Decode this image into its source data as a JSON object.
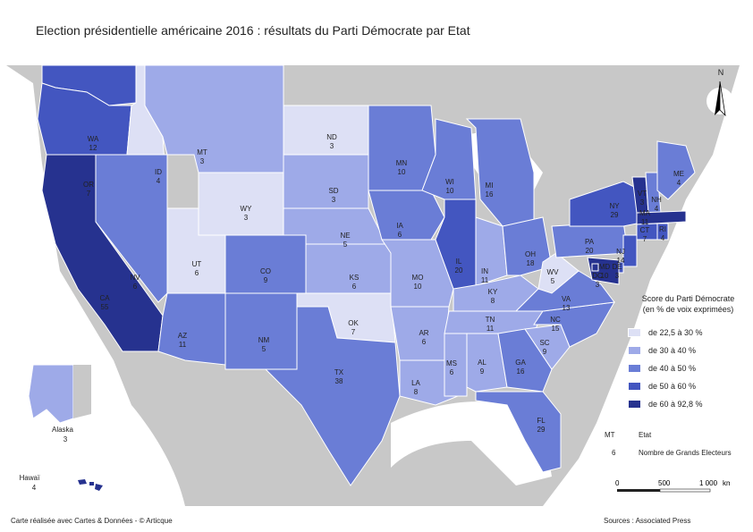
{
  "title": "Election présidentielle américaine 2016 : résultats du Parti Démocrate par Etat",
  "colors": {
    "c1": "#dde0f5",
    "c2": "#9eaae8",
    "c3": "#6a7dd6",
    "c4": "#4356c0",
    "c5": "#26328f",
    "land": "#c8c8c8"
  },
  "states": [
    {
      "code": "WA",
      "ev": "12",
      "class": "c4"
    },
    {
      "code": "OR",
      "ev": "7",
      "class": "c4"
    },
    {
      "code": "CA",
      "ev": "55",
      "class": "c5"
    },
    {
      "code": "ID",
      "ev": "4",
      "class": "c1"
    },
    {
      "code": "NV",
      "ev": "6",
      "class": "c3"
    },
    {
      "code": "MT",
      "ev": "3",
      "class": "c2"
    },
    {
      "code": "WY",
      "ev": "3",
      "class": "c1"
    },
    {
      "code": "UT",
      "ev": "6",
      "class": "c1"
    },
    {
      "code": "AZ",
      "ev": "11",
      "class": "c3"
    },
    {
      "code": "CO",
      "ev": "9",
      "class": "c3"
    },
    {
      "code": "NM",
      "ev": "5",
      "class": "c3"
    },
    {
      "code": "ND",
      "ev": "3",
      "class": "c1"
    },
    {
      "code": "SD",
      "ev": "3",
      "class": "c2"
    },
    {
      "code": "NE",
      "ev": "5",
      "class": "c2"
    },
    {
      "code": "KS",
      "ev": "6",
      "class": "c2"
    },
    {
      "code": "OK",
      "ev": "7",
      "class": "c1"
    },
    {
      "code": "TX",
      "ev": "38",
      "class": "c3"
    },
    {
      "code": "MN",
      "ev": "10",
      "class": "c3"
    },
    {
      "code": "IA",
      "ev": "6",
      "class": "c3"
    },
    {
      "code": "MO",
      "ev": "10",
      "class": "c2"
    },
    {
      "code": "AR",
      "ev": "6",
      "class": "c2"
    },
    {
      "code": "LA",
      "ev": "8",
      "class": "c2"
    },
    {
      "code": "WI",
      "ev": "10",
      "class": "c3"
    },
    {
      "code": "IL",
      "ev": "20",
      "class": "c4"
    },
    {
      "code": "MI",
      "ev": "16",
      "class": "c3"
    },
    {
      "code": "IN",
      "ev": "11",
      "class": "c2"
    },
    {
      "code": "OH",
      "ev": "18",
      "class": "c3"
    },
    {
      "code": "KY",
      "ev": "8",
      "class": "c2"
    },
    {
      "code": "TN",
      "ev": "11",
      "class": "c2"
    },
    {
      "code": "MS",
      "ev": "6",
      "class": "c2"
    },
    {
      "code": "AL",
      "ev": "9",
      "class": "c2"
    },
    {
      "code": "GA",
      "ev": "16",
      "class": "c3"
    },
    {
      "code": "FL",
      "ev": "29",
      "class": "c3"
    },
    {
      "code": "SC",
      "ev": "9",
      "class": "c2"
    },
    {
      "code": "NC",
      "ev": "15",
      "class": "c3"
    },
    {
      "code": "VA",
      "ev": "13",
      "class": "c3"
    },
    {
      "code": "WV",
      "ev": "5",
      "class": "c1"
    },
    {
      "code": "PA",
      "ev": "20",
      "class": "c3"
    },
    {
      "code": "NY",
      "ev": "29",
      "class": "c4"
    },
    {
      "code": "VT",
      "ev": "3",
      "class": "c5"
    },
    {
      "code": "NH",
      "ev": "4",
      "class": "c3"
    },
    {
      "code": "ME",
      "ev": "4",
      "class": "c3"
    },
    {
      "code": "MA",
      "ev": "11",
      "class": "c5"
    },
    {
      "code": "CT",
      "ev": "7",
      "class": "c4"
    },
    {
      "code": "RI",
      "ev": "4",
      "class": "c4"
    },
    {
      "code": "NJ",
      "ev": "14",
      "class": "c4"
    },
    {
      "code": "DE",
      "ev": "3",
      "class": "c4"
    },
    {
      "code": "MD",
      "ev": "10",
      "class": "c5"
    },
    {
      "code": "DC",
      "ev": "3",
      "class": "c5"
    }
  ],
  "insets": {
    "alaska": {
      "name": "Alaska",
      "ev": "3"
    },
    "hawaii": {
      "name": "Hawaï",
      "ev": "4"
    }
  },
  "north_label": "N",
  "legend": {
    "title_line1": "Score du Parti Démocrate",
    "title_line2": "(en % de voix exprimées)",
    "items": [
      {
        "label": "de 22,5 à 30 %",
        "color": "#dde0f5"
      },
      {
        "label": "de 30 à 40 %",
        "color": "#9eaae8"
      },
      {
        "label": "de 40 à 50 %",
        "color": "#6a7dd6"
      },
      {
        "label": "de 50 à 60 %",
        "color": "#4356c0"
      },
      {
        "label": "de 60 à 92,8 %",
        "color": "#26328f"
      }
    ]
  },
  "key": {
    "code_example": "MT",
    "code_meaning": "Etat",
    "ev_example": "6",
    "ev_meaning": "Nombre de Grands Electeurs"
  },
  "scale": {
    "t0": "0",
    "t1": "500",
    "t2": "1 000",
    "unit": "km"
  },
  "footer_left": "Carte réalisée avec Cartes & Données - © Articque",
  "footer_right": "Sources : Associated Press"
}
